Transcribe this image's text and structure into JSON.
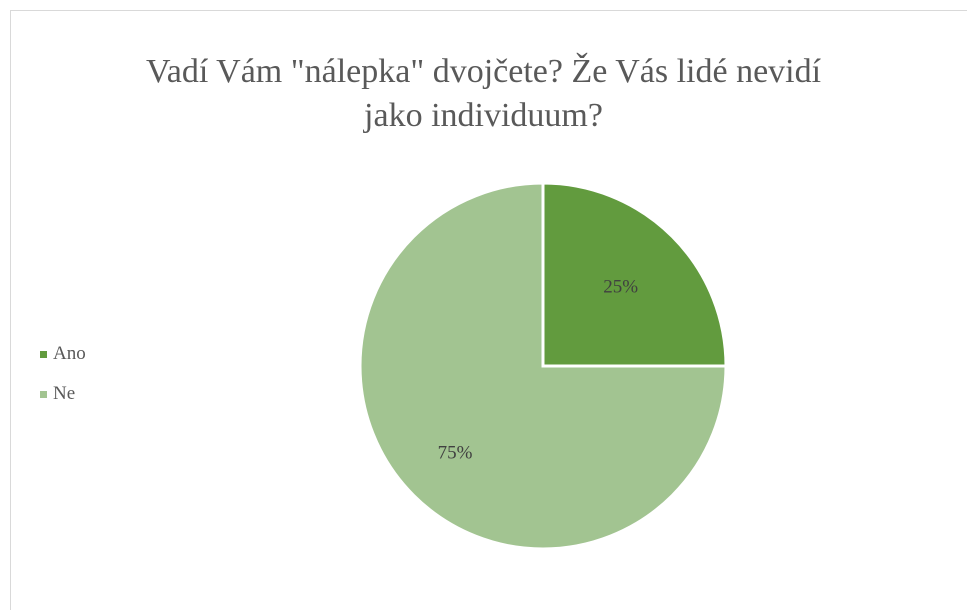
{
  "chart_data": {
    "type": "pie",
    "title": "Vadí Vám \"nálepka\" dvojčete? Že Vás lidé nevidí jako individuum?",
    "title_lines": [
      "Vadí Vám \"nálepka\" dvojčete? Že Vás lidé nevidí",
      "jako individuum?"
    ],
    "categories": [
      "Ano",
      "Ne"
    ],
    "values": [
      25,
      75
    ],
    "labels": [
      "25%",
      "75%"
    ],
    "colors": [
      "#629b3e",
      "#a2c491"
    ],
    "legend_position": "left"
  }
}
